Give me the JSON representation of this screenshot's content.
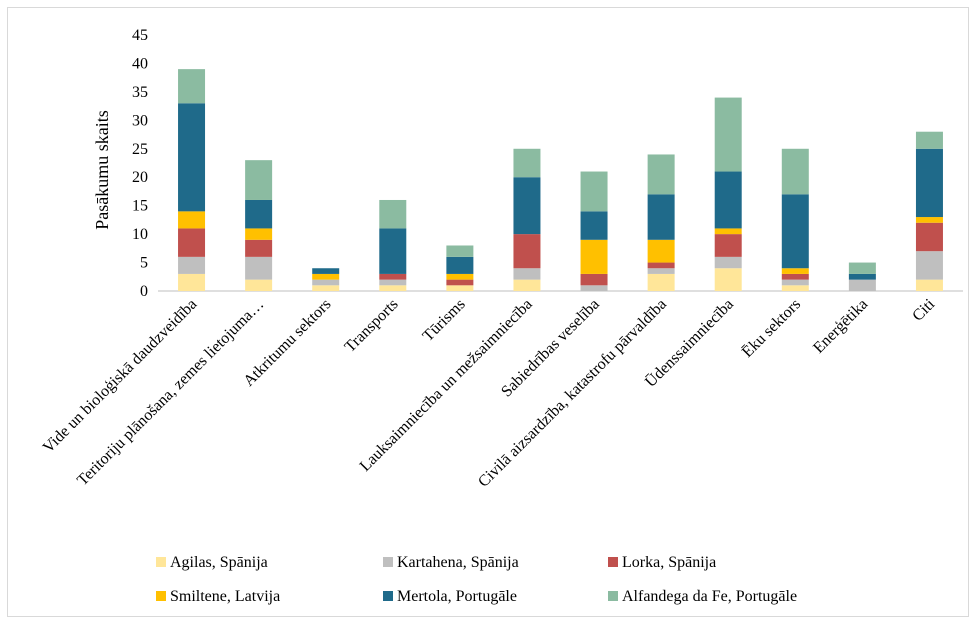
{
  "chart_data": {
    "type": "bar",
    "stacked": true,
    "ylabel": "Pasākumu skaits",
    "ylim": [
      0,
      45
    ],
    "yticks": [
      0,
      5,
      10,
      15,
      20,
      25,
      30,
      35,
      40,
      45
    ],
    "grid": false,
    "legend_position": "bottom",
    "categories": [
      "Vide un bioloģiskā daudzveidība",
      "Teritoriju plānošana, zemes lietojuma…",
      "Atkritumu sektors",
      "Transports",
      "Tūrisms",
      "Lauksaimniecība un mežsaimniecība",
      "Sabiedrības veselība",
      "Civilā aizsardzība, katastrofu pārvaldība",
      "Ūdenssaimniecība",
      "Ēku sektors",
      "Enerģētika",
      "Citi"
    ],
    "series": [
      {
        "name": "Agilas, Spānija",
        "color": "#ffe699",
        "values": [
          3,
          2,
          1,
          1,
          1,
          2,
          0,
          3,
          4,
          1,
          0,
          2
        ]
      },
      {
        "name": "Kartahena, Spānija",
        "color": "#bfbfbf",
        "values": [
          3,
          4,
          1,
          1,
          0,
          2,
          1,
          1,
          2,
          1,
          2,
          5
        ]
      },
      {
        "name": "Lorka, Spānija",
        "color": "#c0504d",
        "values": [
          5,
          3,
          0,
          1,
          1,
          6,
          2,
          1,
          4,
          1,
          0,
          5
        ]
      },
      {
        "name": "Smiltene, Latvija",
        "color": "#ffc000",
        "values": [
          3,
          2,
          1,
          0,
          1,
          0,
          6,
          4,
          1,
          1,
          0,
          1
        ]
      },
      {
        "name": "Mertola, Portugāle",
        "color": "#1f6a8a",
        "values": [
          19,
          5,
          1,
          8,
          3,
          10,
          5,
          8,
          10,
          13,
          1,
          12
        ]
      },
      {
        "name": "Alfandega da Fe, Portugāle",
        "color": "#8bbba1",
        "values": [
          6,
          7,
          0,
          5,
          2,
          5,
          7,
          7,
          13,
          8,
          2,
          3
        ]
      }
    ]
  }
}
